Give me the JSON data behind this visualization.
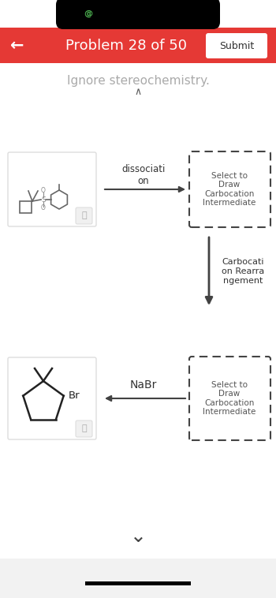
{
  "bg_color": "#ffffff",
  "header_color": "#e53935",
  "header_text": "Problem 28 of 50",
  "submit_btn_text": "Submit",
  "back_arrow": "←",
  "instruction_text": "Ignore stereochemistry.",
  "instruction_color": "#aaaaaa",
  "dissociation_label": "dissociati\non",
  "rearrangement_label": "Carbocati\non Rearra\nngement",
  "nabr_label": "NaBr",
  "select_draw_text": "Select to\nDraw\nCarbocation\nIntermediate",
  "dashed_box_color": "#444444",
  "arrow_color": "#424242",
  "mol_box_border": "#dddddd",
  "zoom_icon_color": "#aaaaaa",
  "status_bar_color": "#000000",
  "chevron_color": "#444444",
  "bottom_bar_color": "#000000"
}
